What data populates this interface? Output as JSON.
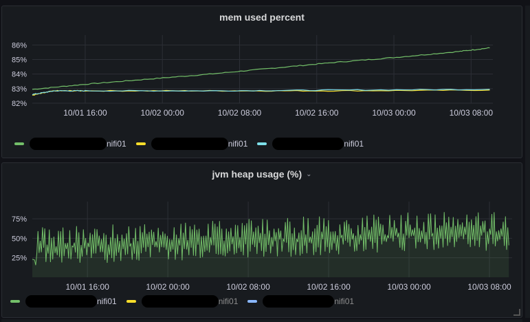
{
  "colors": {
    "green": "#73bf69",
    "yellow": "#fade2a",
    "cyan": "#7ee0ea",
    "blue": "#8ab8ff",
    "grid": "#2c2f36",
    "axis_text": "#ccccdc"
  },
  "panels": [
    {
      "title": "mem used percent",
      "has_menu": false,
      "legend": [
        {
          "suffix": "nifi01",
          "color": "#73bf69"
        },
        {
          "suffix": "nifi01",
          "color": "#fade2a"
        },
        {
          "suffix": "nifi01",
          "color": "#7ee0ea"
        }
      ]
    },
    {
      "title": "jvm heap usage (%)",
      "has_menu": true,
      "menu_icon": "chevron-down-icon",
      "legend": [
        {
          "suffix": "nifi01",
          "color": "#73bf69"
        },
        {
          "suffix": "nifi01",
          "color": "#fade2a"
        },
        {
          "suffix": "nifi01",
          "color": "#8ab8ff"
        }
      ]
    }
  ],
  "chart_data": [
    {
      "type": "line",
      "title": "mem used percent",
      "x_tick_labels": [
        "10/01 16:00",
        "10/02 00:00",
        "10/02 08:00",
        "10/02 16:00",
        "10/03 00:00",
        "10/03 08:00"
      ],
      "x_range_hours": [
        -8.5,
        65.5
      ],
      "y_ticks": [
        82,
        83,
        84,
        85,
        86
      ],
      "y_tick_labels": [
        "82%",
        "83%",
        "84%",
        "85%",
        "86%"
      ],
      "ylim": [
        82,
        86.3
      ],
      "grid": true,
      "legend_position": "bottom-left",
      "series": [
        {
          "color": "#73bf69",
          "x_hours": [
            -8.5,
            0,
            10,
            20,
            30,
            40,
            50,
            60,
            65
          ],
          "values": [
            82.95,
            83.3,
            83.65,
            84.0,
            84.4,
            84.8,
            85.15,
            85.55,
            85.8
          ]
        },
        {
          "color": "#fade2a",
          "x_hours": [
            -8.5,
            -5,
            0,
            20,
            40,
            65
          ],
          "values": [
            82.55,
            82.85,
            82.85,
            82.85,
            82.85,
            82.9
          ]
        },
        {
          "color": "#7ee0ea",
          "x_hours": [
            -8.5,
            -5,
            0,
            20,
            40,
            65
          ],
          "values": [
            82.6,
            82.85,
            82.85,
            82.85,
            82.9,
            82.95
          ]
        }
      ]
    },
    {
      "type": "area",
      "title": "jvm heap usage (%)",
      "x_tick_labels": [
        "10/01 16:00",
        "10/02 00:00",
        "10/02 08:00",
        "10/02 16:00",
        "10/03 00:00",
        "10/03 08:00"
      ],
      "x_range_hours": [
        -8.5,
        65.5
      ],
      "y_ticks": [
        25,
        50,
        75
      ],
      "y_tick_labels": [
        "25%",
        "50%",
        "75%"
      ],
      "ylim": [
        0,
        90
      ],
      "grid": true,
      "legend_position": "bottom-left",
      "series": [
        {
          "color": "#73bf69",
          "x_hours": [
            -8.5,
            65
          ],
          "min_values": [
            15,
            35
          ],
          "max_values": [
            65,
            88
          ],
          "oscillating": true
        }
      ]
    }
  ]
}
